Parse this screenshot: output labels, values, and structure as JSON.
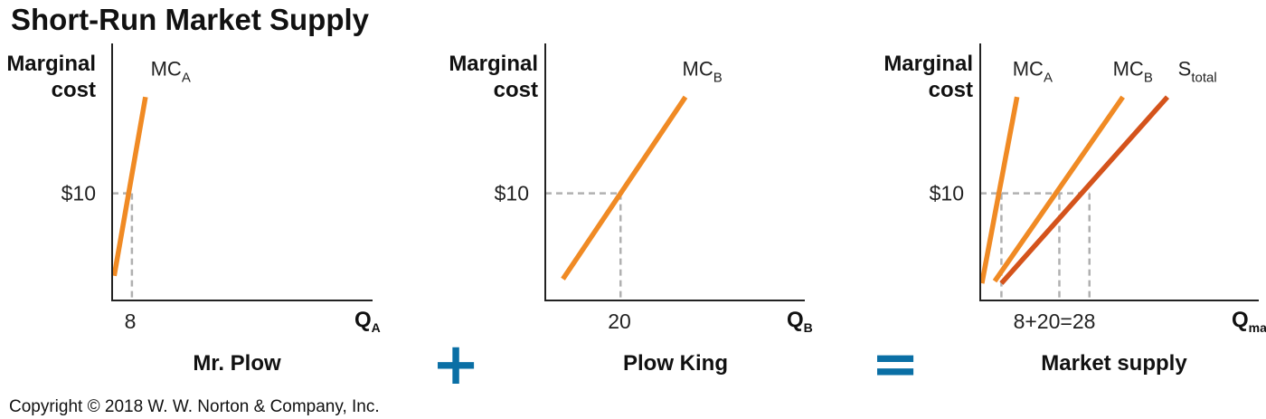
{
  "title": "Short-Run Market Supply",
  "copyright": "Copyright © 2018 W. W. Norton & Company, Inc.",
  "operators": {
    "plus": "+",
    "equals": "="
  },
  "colors": {
    "mc": "#f08a24",
    "supply": "#d4531b",
    "guide": "#b0b0b0",
    "operator": "#0a6fa5",
    "axis": "#222222"
  },
  "chart_data": [
    {
      "type": "line",
      "panel_label": "Mr. Plow",
      "ylabel_lines": [
        "Marginal",
        "cost"
      ],
      "xlabel": {
        "main": "Q",
        "sub": "A"
      },
      "y_tick_label": "$10",
      "x_tick_label": "8",
      "xlim": [
        0,
        50
      ],
      "ylim": [
        0,
        24
      ],
      "series": [
        {
          "label_main": "MC",
          "label_sub": "A",
          "color": "#f08a24",
          "x": [
            0.4,
            6.4
          ],
          "y": [
            2.3,
            19.0
          ],
          "label_at": [
            7.4,
            21.0
          ]
        }
      ],
      "guides": [
        {
          "x": 3.8,
          "y": 10
        }
      ]
    },
    {
      "type": "line",
      "panel_label": "Plow King",
      "ylabel_lines": [
        "Marginal",
        "cost"
      ],
      "xlabel": {
        "main": "Q",
        "sub": "B"
      },
      "y_tick_label": "$10",
      "x_tick_label": "20",
      "xlim": [
        0,
        50
      ],
      "ylim": [
        0,
        24
      ],
      "series": [
        {
          "label_main": "MC",
          "label_sub": "B",
          "color": "#f08a24",
          "x": [
            3.4,
            27.0
          ],
          "y": [
            2.0,
            19.0
          ],
          "label_at": [
            26.4,
            21.0
          ]
        }
      ],
      "guides": [
        {
          "x": 14.5,
          "y": 10
        }
      ]
    },
    {
      "type": "line",
      "panel_label": "Market supply",
      "ylabel_lines": [
        "Marginal",
        "cost"
      ],
      "xlabel": {
        "main": "Q",
        "sub": "market"
      },
      "y_tick_label": "$10",
      "x_tick_label": "8+20=28",
      "xlim": [
        0,
        50
      ],
      "ylim": [
        0,
        24
      ],
      "series": [
        {
          "label_main": "MC",
          "label_sub": "A",
          "color": "#f08a24",
          "x": [
            0.3,
            6.6
          ],
          "y": [
            1.6,
            19.0
          ],
          "label_at": [
            5.8,
            21.0
          ]
        },
        {
          "label_main": "MC",
          "label_sub": "B",
          "color": "#f08a24",
          "x": [
            2.6,
            25.6
          ],
          "y": [
            1.8,
            19.0
          ],
          "label_at": [
            23.8,
            21.0
          ]
        },
        {
          "label_main": "S",
          "label_sub": "total",
          "color": "#d4531b",
          "x": [
            3.8,
            33.6
          ],
          "y": [
            1.6,
            19.0
          ],
          "label_at": [
            35.5,
            21.0
          ]
        }
      ],
      "guides": [
        {
          "x": 3.8,
          "y": 10
        },
        {
          "x": 14.2,
          "y": 10
        },
        {
          "x": 19.6,
          "y": 10
        }
      ]
    }
  ]
}
